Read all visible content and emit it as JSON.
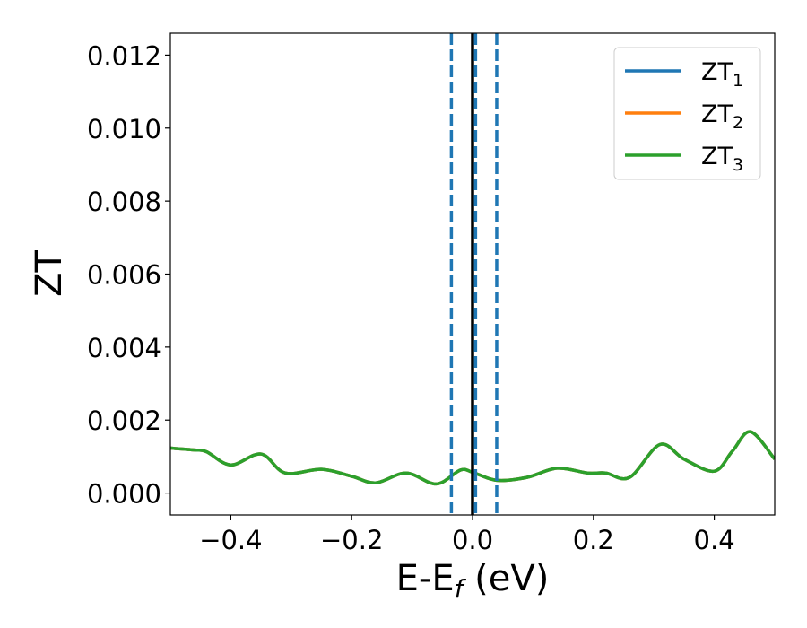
{
  "chart_data": {
    "type": "line",
    "xlabel": {
      "main": "E-E",
      "sub": "f",
      "unit": " (eV)"
    },
    "ylabel": "ZT",
    "xlim": [
      -0.5,
      0.5
    ],
    "ylim": [
      -0.0006,
      0.0126
    ],
    "xticks": [
      -0.4,
      -0.2,
      0.0,
      0.2,
      0.4
    ],
    "xtick_labels": [
      "−0.4",
      "−0.2",
      "0.0",
      "0.2",
      "0.4"
    ],
    "yticks": [
      0.0,
      0.002,
      0.004,
      0.006,
      0.008,
      0.01,
      0.012
    ],
    "ytick_labels": [
      "0.000",
      "0.002",
      "0.004",
      "0.006",
      "0.008",
      "0.010",
      "0.012"
    ],
    "grid": false,
    "legend": "top-right",
    "series": [
      {
        "name": "ZT",
        "sub": "1",
        "color": "#1f77b4",
        "x": [
          -0.5,
          -0.46,
          -0.44,
          -0.4,
          -0.35,
          -0.31,
          -0.25,
          -0.2,
          -0.16,
          -0.11,
          -0.06,
          -0.02,
          0.0,
          0.04,
          0.09,
          0.14,
          0.19,
          0.22,
          0.26,
          0.31,
          0.35,
          0.4,
          0.43,
          0.46,
          0.5
        ],
        "y": [
          0.00123,
          0.00118,
          0.00113,
          0.00077,
          0.00107,
          0.00055,
          0.00065,
          0.00046,
          0.00028,
          0.00055,
          0.00025,
          0.00063,
          0.00057,
          0.00035,
          0.00043,
          0.00068,
          0.00055,
          0.00055,
          0.00043,
          0.00133,
          0.00093,
          0.0006,
          0.00115,
          0.00168,
          0.00093
        ]
      },
      {
        "name": "ZT",
        "sub": "2",
        "color": "#ff7f0e",
        "x": [
          -0.5,
          -0.46,
          -0.44,
          -0.4,
          -0.35,
          -0.31,
          -0.25,
          -0.2,
          -0.16,
          -0.11,
          -0.06,
          -0.02,
          0.0,
          0.04,
          0.09,
          0.14,
          0.19,
          0.22,
          0.26,
          0.31,
          0.35,
          0.4,
          0.43,
          0.46,
          0.5
        ],
        "y": [
          0.00123,
          0.00118,
          0.00113,
          0.00077,
          0.00107,
          0.00055,
          0.00065,
          0.00046,
          0.00028,
          0.00055,
          0.00025,
          0.00063,
          0.00057,
          0.00035,
          0.00043,
          0.00068,
          0.00055,
          0.00055,
          0.00043,
          0.00133,
          0.00093,
          0.0006,
          0.00115,
          0.00168,
          0.00093
        ]
      },
      {
        "name": "ZT",
        "sub": "3",
        "color": "#2ca02c",
        "x": [
          -0.5,
          -0.46,
          -0.44,
          -0.4,
          -0.35,
          -0.31,
          -0.25,
          -0.2,
          -0.16,
          -0.11,
          -0.06,
          -0.02,
          0.0,
          0.04,
          0.09,
          0.14,
          0.19,
          0.22,
          0.26,
          0.31,
          0.35,
          0.4,
          0.43,
          0.46,
          0.5
        ],
        "y": [
          0.00123,
          0.00118,
          0.00113,
          0.00077,
          0.00107,
          0.00055,
          0.00065,
          0.00046,
          0.00028,
          0.00055,
          0.00025,
          0.00063,
          0.00057,
          0.00035,
          0.00043,
          0.00068,
          0.00055,
          0.00055,
          0.00043,
          0.00133,
          0.00093,
          0.0006,
          0.00115,
          0.00168,
          0.00093
        ]
      }
    ],
    "vlines": [
      {
        "x": 0.0,
        "color": "#000000",
        "style": "solid"
      },
      {
        "x": -0.035,
        "color": "#1f77b4",
        "style": "dashed"
      },
      {
        "x": 0.005,
        "color": "#1f77b4",
        "style": "dashed"
      },
      {
        "x": 0.04,
        "color": "#1f77b4",
        "style": "dashed"
      }
    ]
  }
}
